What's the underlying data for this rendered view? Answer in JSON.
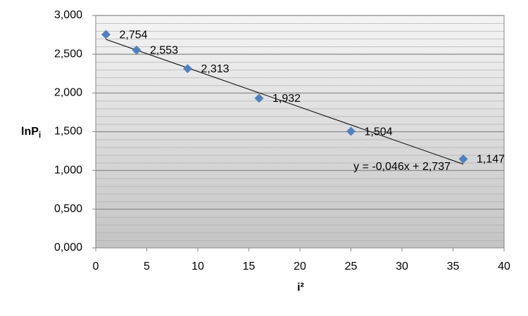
{
  "chart_data": {
    "type": "scatter",
    "x_label": "i²",
    "y_label": {
      "text": "lnP",
      "subscript": "i"
    },
    "x": [
      1,
      4,
      9,
      16,
      25,
      36
    ],
    "values": [
      2.754,
      2.553,
      2.313,
      1.932,
      1.504,
      1.147
    ],
    "value_labels": [
      "2,754",
      "2,553",
      "2,313",
      "1,932",
      "1,504",
      "1,147"
    ],
    "color": "#4f81bd",
    "xlim": [
      0,
      40
    ],
    "xticks": [
      0,
      5,
      10,
      15,
      20,
      25,
      30,
      35,
      40
    ],
    "ylim": [
      0,
      3
    ],
    "yticks": [
      {
        "value": 0,
        "label": "0,000"
      },
      {
        "value": 0.5,
        "label": "0,500"
      },
      {
        "value": 1,
        "label": "1,000"
      },
      {
        "value": 1.5,
        "label": "1,500"
      },
      {
        "value": 2,
        "label": "2,000"
      },
      {
        "value": 2.5,
        "label": "2,500"
      },
      {
        "value": 3,
        "label": "3,000"
      }
    ],
    "grid": true,
    "trendline": {
      "slope": -0.046,
      "intercept": 2.737,
      "label": "y = -0,046x + 2,737"
    }
  }
}
